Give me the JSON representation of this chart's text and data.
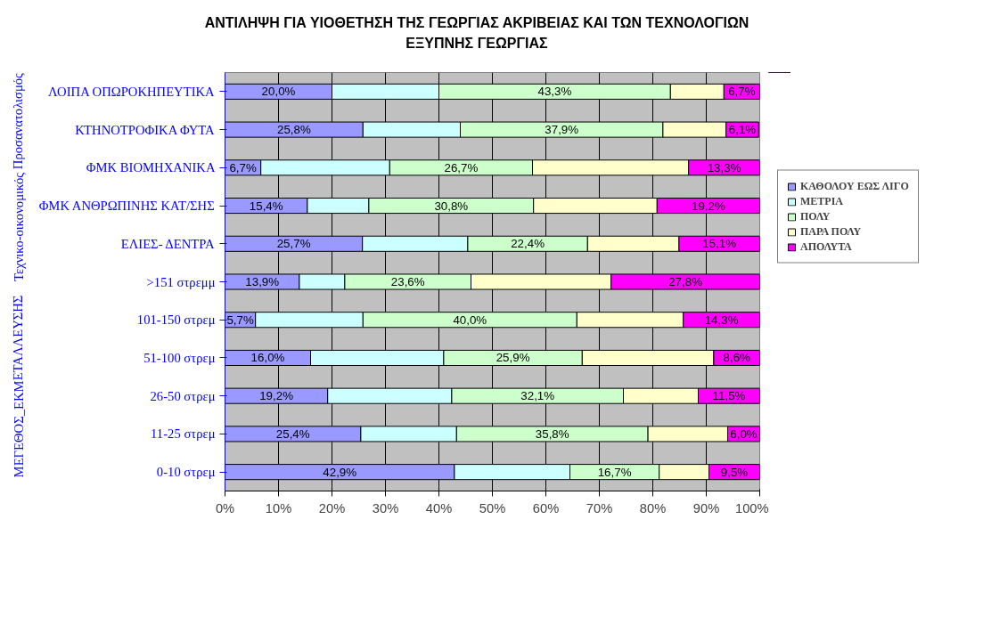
{
  "chart_data": {
    "type": "bar",
    "orientation": "horizontal",
    "stacked": true,
    "title": "ΑΝΤΙΛΗΨΗ ΓΙΑ ΥΙΟΘΕΤΗΣΗ ΤΗΣ ΓΕΩΡΓΙΑΣ ΑΚΡΙΒΕΙΑΣ ΚΑΙ ΤΩΝ ΤΕΧΝΟΛΟΓΙΩΝ\nΕΞΥΠΝΗΣ ΓΕΩΡΓΙΑΣ",
    "annotations": [
      "Τεχνικο-οικονομικός Προσανατολισμός",
      "ΜΕΓΕΘΟΣ_ΕΚΜΕΤΑΛΛΕΥΣΗΣ"
    ],
    "categories": [
      "ΛΟΙΠΑ ΟΠΩΡΟΚΗΠΕΥΤΙΚΑ",
      "ΚΤΗΝΟΤΡΟΦΙΚΑ ΦΥΤΑ",
      "ΦΜΚ ΒΙΟΜΗΧΑΝΙΚΑ",
      "ΦΜΚ ΑΝΘΡΩΠΙΝΗΣ ΚΑΤ/ΣΗΣ",
      "ΕΛΙΕΣ- ΔΕΝΤΡΑ",
      ">151 στρεμμ",
      "101-150 στρεμ",
      "51-100 στρεμ",
      "26-50 στρεμ",
      "11-25 στρεμ",
      "0-10 στρεμ"
    ],
    "series": [
      {
        "name": "ΚΑΘΟΛΟΥ ΕΩΣ ΛΙΓΟ",
        "color": "#9999ff",
        "values": [
          20.0,
          25.8,
          6.7,
          15.4,
          25.7,
          13.9,
          5.7,
          16.0,
          19.2,
          25.4,
          42.9
        ],
        "value_labels": [
          "20,0%",
          "25,8%",
          "6,7%",
          "15,4%",
          "25,7%",
          "13,9%",
          "5,7%",
          "16,0%",
          "19,2%",
          "25,4%",
          "42,9%"
        ]
      },
      {
        "name": "ΜΕΤΡΙΑ",
        "color": "#ccffff",
        "values": [
          20.0,
          18.2,
          24.1,
          11.5,
          19.7,
          8.5,
          20.1,
          24.9,
          23.2,
          17.9,
          21.6
        ]
      },
      {
        "name": "ΠΟΛΥ",
        "color": "#ccffcc",
        "values": [
          43.3,
          37.9,
          26.7,
          30.8,
          22.4,
          23.6,
          40.0,
          25.9,
          32.1,
          35.8,
          16.7
        ],
        "value_labels": [
          "43,3%",
          "37,9%",
          "26,7%",
          "30,8%",
          "22,4%",
          "23,6%",
          "40,0%",
          "25,9%",
          "32,1%",
          "35,8%",
          "16,7%"
        ]
      },
      {
        "name": "ΠΑΡΑ ΠΟΛΥ",
        "color": "#ffffcc",
        "values": [
          10.0,
          11.8,
          29.2,
          23.1,
          17.1,
          26.2,
          19.9,
          24.6,
          14.0,
          14.9,
          9.3
        ]
      },
      {
        "name": "ΑΠΟΛΥΤΑ",
        "color": "#ff00ff",
        "values": [
          6.7,
          6.1,
          13.3,
          19.2,
          15.1,
          27.8,
          14.3,
          8.6,
          11.5,
          6.0,
          9.5
        ],
        "value_labels": [
          "6,7%",
          "6,1%",
          "13,3%",
          "19,2%",
          "15,1%",
          "27,8%",
          "14,3%",
          "8,6%",
          "11,5%",
          "6,0%",
          "9,5%"
        ]
      }
    ],
    "xlim": [
      0,
      100
    ],
    "xticks": [
      {
        "value": 0,
        "label": "0%"
      },
      {
        "value": 10,
        "label": "10%"
      },
      {
        "value": 20,
        "label": "20%"
      },
      {
        "value": 30,
        "label": "30%"
      },
      {
        "value": 40,
        "label": "40%"
      },
      {
        "value": 50,
        "label": "50%"
      },
      {
        "value": 60,
        "label": "60%"
      },
      {
        "value": 70,
        "label": "70%"
      },
      {
        "value": 80,
        "label": "80%"
      },
      {
        "value": 90,
        "label": "90%"
      },
      {
        "value": 100,
        "label": "100%"
      }
    ],
    "grid": "x",
    "legend": "right"
  }
}
